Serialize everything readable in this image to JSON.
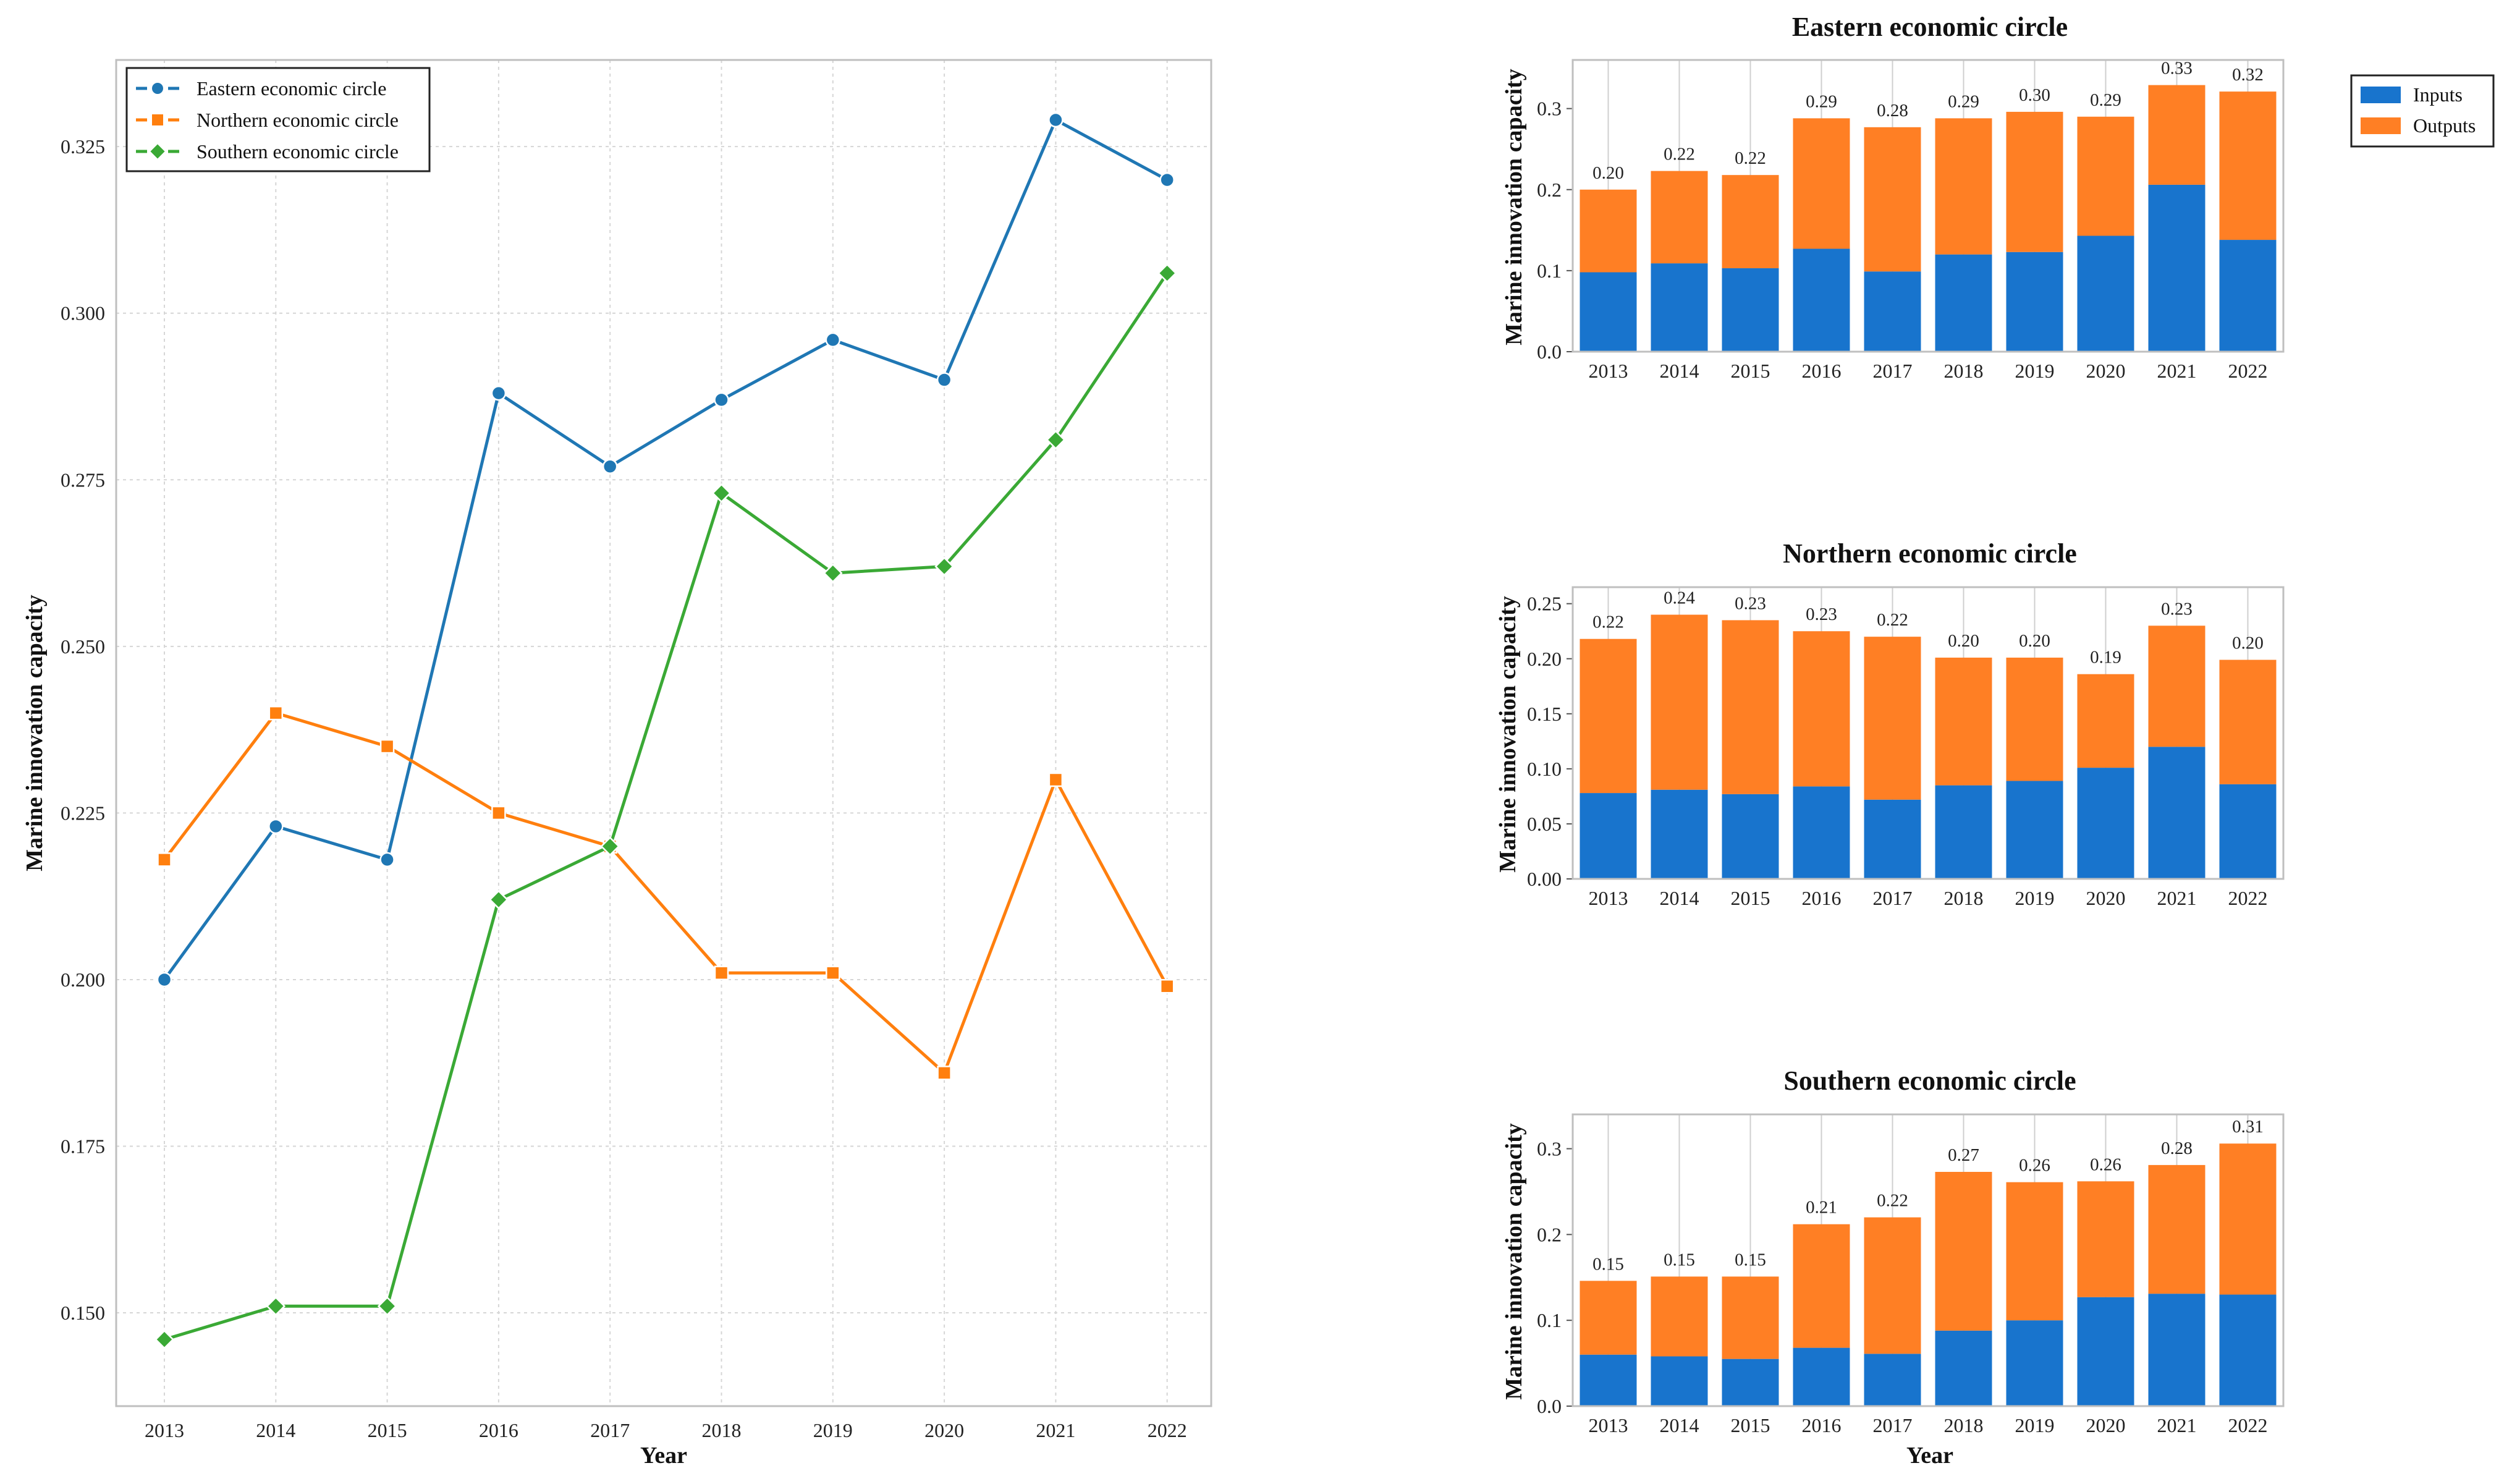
{
  "chart_data": [
    {
      "type": "line",
      "xlabel": "Year",
      "ylabel": "Marine innovation capacity",
      "x": [
        "2013",
        "2014",
        "2015",
        "2016",
        "2017",
        "2018",
        "2019",
        "2020",
        "2021",
        "2022"
      ],
      "ylim": [
        0.136,
        0.338
      ],
      "yticks": [
        "0.150",
        "0.175",
        "0.200",
        "0.225",
        "0.250",
        "0.275",
        "0.300",
        "0.325"
      ],
      "grid": true,
      "legend_position": "top-left",
      "series": [
        {
          "name": "Eastern economic circle",
          "color": "#1f77b4",
          "marker": "circle",
          "values": [
            0.2,
            0.223,
            0.218,
            0.288,
            0.277,
            0.287,
            0.296,
            0.29,
            0.329,
            0.32
          ]
        },
        {
          "name": "Northern economic circle",
          "color": "#ff7f0e",
          "marker": "square",
          "values": [
            0.218,
            0.24,
            0.235,
            0.225,
            0.22,
            0.201,
            0.201,
            0.186,
            0.23,
            0.199
          ]
        },
        {
          "name": "Southern economic circle",
          "color": "#3aa935",
          "marker": "diamond",
          "values": [
            0.146,
            0.151,
            0.151,
            0.212,
            0.22,
            0.273,
            0.261,
            0.262,
            0.281,
            0.306
          ]
        }
      ]
    },
    {
      "type": "bar",
      "stacked": true,
      "title": "Eastern economic circle",
      "xlabel": "",
      "ylabel": "Marine innovation capacity",
      "categories": [
        "2013",
        "2014",
        "2015",
        "2016",
        "2017",
        "2018",
        "2019",
        "2020",
        "2021",
        "2022"
      ],
      "ylim": [
        0,
        0.36
      ],
      "yticks": [
        "0.0",
        "0.1",
        "0.2",
        "0.3"
      ],
      "legend_position": "right",
      "series": [
        {
          "name": "Inputs",
          "color": "#1874cd",
          "values": [
            0.098,
            0.109,
            0.103,
            0.127,
            0.099,
            0.12,
            0.123,
            0.143,
            0.206,
            0.138
          ]
        },
        {
          "name": "Outputs",
          "color": "#ff7f24",
          "values": [
            0.102,
            0.114,
            0.115,
            0.161,
            0.178,
            0.168,
            0.173,
            0.147,
            0.123,
            0.183
          ]
        }
      ],
      "totals_labels": [
        "0.20",
        "0.22",
        "0.22",
        "0.29",
        "0.28",
        "0.29",
        "0.30",
        "0.29",
        "0.33",
        "0.32"
      ]
    },
    {
      "type": "bar",
      "stacked": true,
      "title": "Northern economic circle",
      "xlabel": "",
      "ylabel": "Marine innovation capacity",
      "categories": [
        "2013",
        "2014",
        "2015",
        "2016",
        "2017",
        "2018",
        "2019",
        "2020",
        "2021",
        "2022"
      ],
      "ylim": [
        0,
        0.265
      ],
      "yticks": [
        "0.00",
        "0.05",
        "0.10",
        "0.15",
        "0.20",
        "0.25"
      ],
      "series": [
        {
          "name": "Inputs",
          "color": "#1874cd",
          "values": [
            0.078,
            0.081,
            0.077,
            0.084,
            0.072,
            0.085,
            0.089,
            0.101,
            0.12,
            0.086
          ]
        },
        {
          "name": "Outputs",
          "color": "#ff7f24",
          "values": [
            0.14,
            0.159,
            0.158,
            0.141,
            0.148,
            0.116,
            0.112,
            0.085,
            0.11,
            0.113
          ]
        }
      ],
      "totals_labels": [
        "0.22",
        "0.24",
        "0.23",
        "0.23",
        "0.22",
        "0.20",
        "0.20",
        "0.19",
        "0.23",
        "0.20"
      ]
    },
    {
      "type": "bar",
      "stacked": true,
      "title": "Southern economic circle",
      "xlabel": "Year",
      "ylabel": "Marine innovation capacity",
      "categories": [
        "2013",
        "2014",
        "2015",
        "2016",
        "2017",
        "2018",
        "2019",
        "2020",
        "2021",
        "2022"
      ],
      "ylim": [
        0,
        0.34
      ],
      "yticks": [
        "0.0",
        "0.1",
        "0.2",
        "0.3"
      ],
      "series": [
        {
          "name": "Inputs",
          "color": "#1874cd",
          "values": [
            0.06,
            0.058,
            0.055,
            0.068,
            0.061,
            0.088,
            0.1,
            0.127,
            0.131,
            0.13
          ]
        },
        {
          "name": "Outputs",
          "color": "#ff7f24",
          "values": [
            0.086,
            0.093,
            0.096,
            0.144,
            0.159,
            0.185,
            0.161,
            0.135,
            0.15,
            0.176
          ]
        }
      ],
      "totals_labels": [
        "0.15",
        "0.15",
        "0.15",
        "0.21",
        "0.22",
        "0.27",
        "0.26",
        "0.26",
        "0.28",
        "0.31"
      ]
    }
  ]
}
